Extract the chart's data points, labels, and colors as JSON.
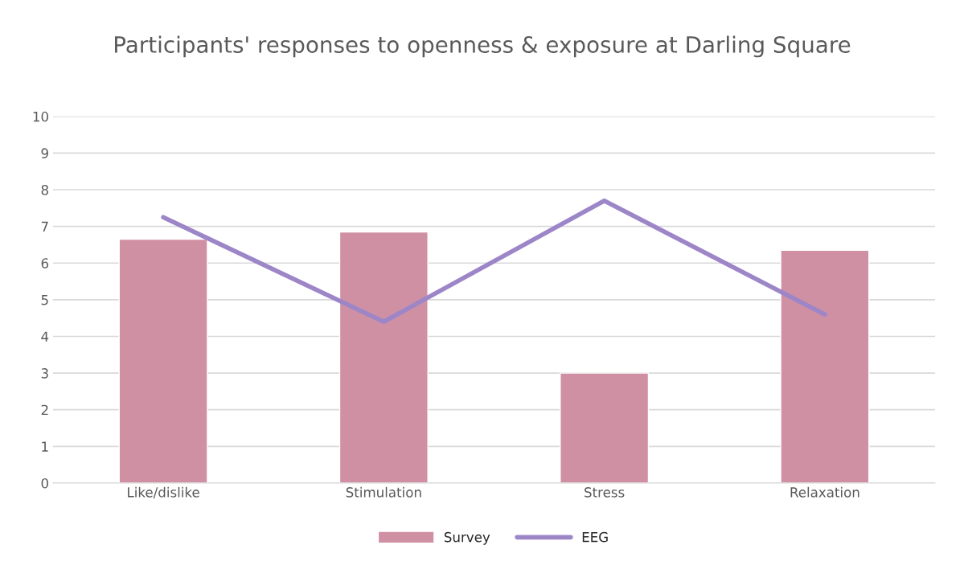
{
  "chart_data": {
    "type": "bar",
    "title": "Participants' responses to openness & exposure at Darling Square",
    "categories": [
      "Like/dislike",
      "Stimulation",
      "Stress",
      "Relaxation"
    ],
    "series": [
      {
        "name": "Survey",
        "color": "#cf90a3",
        "values": [
          6.65,
          6.85,
          3.0,
          6.35
        ]
      },
      {
        "name": "EEG",
        "type": "line",
        "color": "#9c86c8",
        "values": [
          7.25,
          4.4,
          7.7,
          4.6
        ]
      }
    ],
    "ylim": [
      0,
      10
    ],
    "yticks": [
      0,
      1,
      2,
      3,
      4,
      5,
      6,
      7,
      8,
      9,
      10
    ],
    "grid": "y",
    "legend": "bottom",
    "marker": "none",
    "line_style": "solid"
  }
}
